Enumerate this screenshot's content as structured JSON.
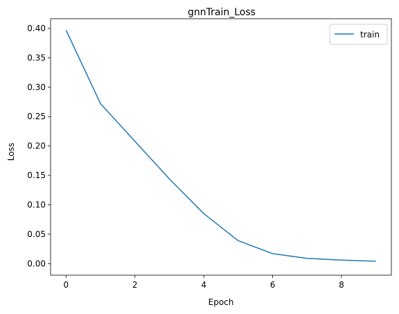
{
  "chart_data": {
    "type": "line",
    "title": "gnnTrain_Loss",
    "xlabel": "Epoch",
    "ylabel": "Loss",
    "xlim": [
      -0.45,
      9.45
    ],
    "ylim": [
      -0.0197,
      0.4165
    ],
    "x_ticks": [
      0,
      2,
      4,
      6,
      8
    ],
    "x_tick_labels": [
      "0",
      "2",
      "4",
      "6",
      "8"
    ],
    "y_ticks": [
      0.0,
      0.05,
      0.1,
      0.15,
      0.2,
      0.25,
      0.3,
      0.35,
      0.4
    ],
    "y_tick_labels": [
      "0.00",
      "0.05",
      "0.10",
      "0.15",
      "0.20",
      "0.25",
      "0.30",
      "0.35",
      "0.40"
    ],
    "grid": false,
    "legend_position": "top-right",
    "series": [
      {
        "name": "train",
        "color": "#1f77b4",
        "x": [
          0,
          1,
          2,
          3,
          4,
          5,
          6,
          7,
          8,
          9
        ],
        "y": [
          0.397,
          0.272,
          0.208,
          0.144,
          0.085,
          0.039,
          0.017,
          0.009,
          0.006,
          0.004
        ]
      }
    ]
  }
}
